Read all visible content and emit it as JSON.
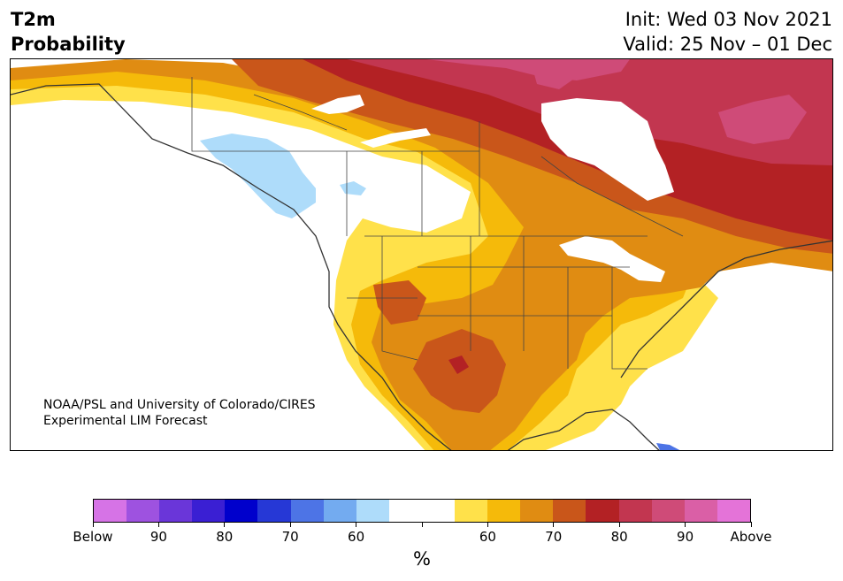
{
  "header": {
    "title_line1": "T2m",
    "title_line2": "Probability",
    "init": "Init: Wed 03 Nov 2021",
    "valid": "Valid: 25 Nov – 01 Dec"
  },
  "credit": {
    "line1": "NOAA/PSL and University of Colorado/CIRES",
    "line2": "Experimental LIM Forecast"
  },
  "colorbar": {
    "colors": [
      "#d673e6",
      "#9e52e0",
      "#6a36d9",
      "#3a1fd3",
      "#0000cc",
      "#2638d6",
      "#4d74e6",
      "#73abf0",
      "#aedcfa",
      "#ffffff",
      "#ffffff",
      "#ffe14a",
      "#f5ba0a",
      "#e08c12",
      "#c9561a",
      "#b32124",
      "#c23650",
      "#cf4b78",
      "#da5fa6",
      "#e473d8"
    ],
    "tick_labels": [
      "Below",
      "90",
      "80",
      "70",
      "60",
      "",
      "60",
      "70",
      "80",
      "90",
      "Above"
    ],
    "unit": "%"
  },
  "map": {
    "region": "North America",
    "layer": "T2m probability (below / above normal)",
    "borders": "state-and-province"
  }
}
